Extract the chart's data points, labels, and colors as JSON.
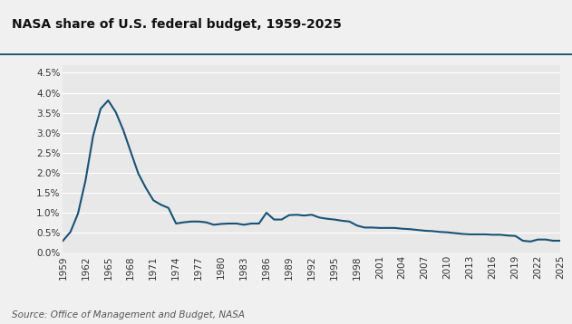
{
  "title": "NASA share of U.S. federal budget, 1959-2025",
  "source": "Source: Office of Management and Budget, NASA",
  "line_color": "#1a5276",
  "background_color": "#f0f0f0",
  "plot_bg_color": "#e8e8e8",
  "title_bg_color": "#ffffff",
  "separator_color": "#1a5276",
  "years": [
    1959,
    1960,
    1961,
    1962,
    1963,
    1964,
    1965,
    1966,
    1967,
    1968,
    1969,
    1970,
    1971,
    1972,
    1973,
    1974,
    1975,
    1976,
    1977,
    1978,
    1979,
    1980,
    1981,
    1982,
    1983,
    1984,
    1985,
    1986,
    1987,
    1988,
    1989,
    1990,
    1991,
    1992,
    1993,
    1994,
    1995,
    1996,
    1997,
    1998,
    1999,
    2000,
    2001,
    2002,
    2003,
    2004,
    2005,
    2006,
    2007,
    2008,
    2009,
    2010,
    2011,
    2012,
    2013,
    2014,
    2015,
    2016,
    2017,
    2018,
    2019,
    2020,
    2021,
    2022,
    2023,
    2024,
    2025
  ],
  "values": [
    0.003,
    0.0052,
    0.0098,
    0.0181,
    0.0292,
    0.036,
    0.0381,
    0.0352,
    0.0307,
    0.0252,
    0.0198,
    0.0162,
    0.0131,
    0.012,
    0.0112,
    0.0073,
    0.0076,
    0.0078,
    0.0078,
    0.0076,
    0.007,
    0.0072,
    0.0073,
    0.0073,
    0.007,
    0.0073,
    0.0073,
    0.01,
    0.0083,
    0.0083,
    0.0094,
    0.0095,
    0.0093,
    0.0095,
    0.0088,
    0.0085,
    0.0083,
    0.008,
    0.0078,
    0.0068,
    0.0063,
    0.0063,
    0.0062,
    0.0062,
    0.0062,
    0.006,
    0.0059,
    0.0057,
    0.0055,
    0.0054,
    0.0052,
    0.0051,
    0.0049,
    0.0047,
    0.0046,
    0.0046,
    0.0046,
    0.0045,
    0.0045,
    0.0043,
    0.0042,
    0.003,
    0.0028,
    0.0033,
    0.0033,
    0.003,
    0.003
  ],
  "yticks": [
    0.0,
    0.005,
    0.01,
    0.015,
    0.02,
    0.025,
    0.03,
    0.035,
    0.04,
    0.045
  ],
  "xticks": [
    1959,
    1962,
    1965,
    1968,
    1971,
    1974,
    1977,
    1980,
    1983,
    1986,
    1989,
    1992,
    1995,
    1998,
    2001,
    2004,
    2007,
    2010,
    2013,
    2016,
    2019,
    2022,
    2025
  ],
  "ylim": [
    0,
    0.047
  ],
  "xlim": [
    1959,
    2025
  ],
  "line_width": 1.5,
  "title_fontsize": 10,
  "tick_fontsize": 7.5,
  "source_fontsize": 7.5
}
